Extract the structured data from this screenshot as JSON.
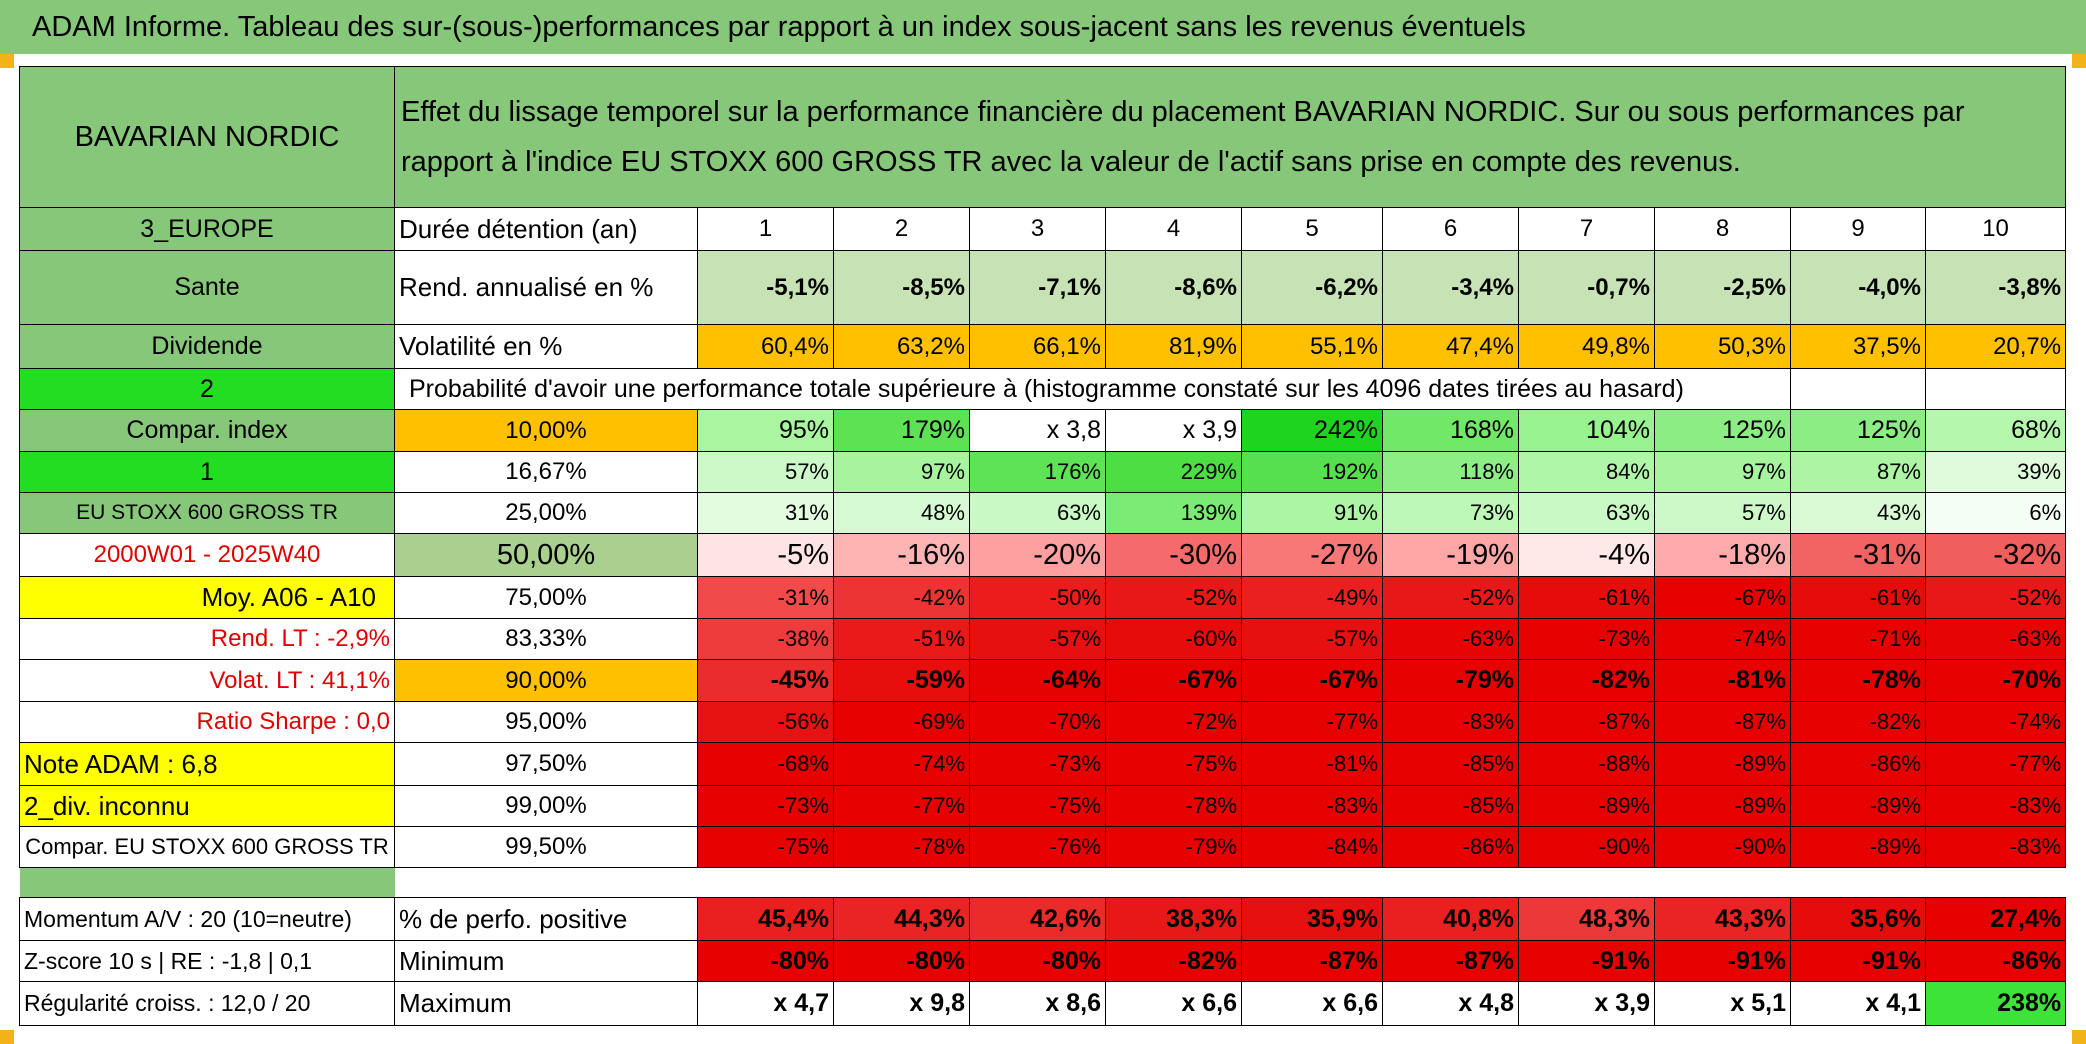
{
  "banner": "ADAM Informe. Tableau des sur-(sous-)performances par rapport à un index sous-jacent sans les revenus éventuels",
  "header": {
    "asset": "BAVARIAN NORDIC",
    "description_line1": "Effet du lissage temporel sur la performance financière du placement BAVARIAN NORDIC. Sur ou sous performances par",
    "description_line2": "rapport à l'indice EU STOXX 600 GROSS TR avec la valeur de l'actif sans prise en compte des revenus."
  },
  "duration": {
    "left": "3_EUROPE",
    "label": "Durée détention (an)",
    "years": [
      "1",
      "2",
      "3",
      "4",
      "5",
      "6",
      "7",
      "8",
      "9",
      "10"
    ]
  },
  "rend": {
    "left": "Sante",
    "label": "Rend. annualisé en %",
    "values": [
      "-5,1%",
      "-8,5%",
      "-7,1%",
      "-8,6%",
      "-6,2%",
      "-3,4%",
      "-0,7%",
      "-2,5%",
      "-4,0%",
      "-3,8%"
    ]
  },
  "vol": {
    "left": "Dividende",
    "label": "Volatilité en %",
    "values": [
      "60,4%",
      "63,2%",
      "66,1%",
      "81,9%",
      "55,1%",
      "47,4%",
      "49,8%",
      "50,3%",
      "37,5%",
      "20,7%"
    ],
    "colors": [
      "#ffc000",
      "#ffc000",
      "#ffc000",
      "#ffc000",
      "#ffc000",
      "#ffc000",
      "#ffc000",
      "#ffc000",
      "#ffc000",
      "#ffc000"
    ]
  },
  "prob": {
    "left": "2",
    "title": "Probabilité d'avoir une performance totale supérieure à (histogramme constaté sur les 4096 dates tirées au hasard)"
  },
  "quantiles": [
    {
      "left": "Compar. index",
      "pct": "10,00%",
      "values": [
        "95%",
        "179%",
        "x 3,8",
        "x 3,9",
        "242%",
        "168%",
        "104%",
        "125%",
        "125%",
        "68%"
      ],
      "colors": [
        "#a9f5a0",
        "#5de254",
        "#ffffff",
        "#ffffff",
        "#1ed41e",
        "#71e868",
        "#98f290",
        "#8ced84",
        "#8ced84",
        "#b6f7ae"
      ]
    },
    {
      "left": "1",
      "pct": "16,67%",
      "values": [
        "57%",
        "97%",
        "176%",
        "229%",
        "192%",
        "118%",
        "84%",
        "97%",
        "87%",
        "39%"
      ],
      "colors": [
        "#cdf9c8",
        "#a6f59e",
        "#5fe356",
        "#4cde43",
        "#56e04d",
        "#8eee86",
        "#b0f6a8",
        "#a6f59e",
        "#adf5a5",
        "#e0fbdc"
      ]
    },
    {
      "left": "EU STOXX 600 GROSS TR",
      "pct": "25,00%",
      "values": [
        "31%",
        "48%",
        "63%",
        "139%",
        "91%",
        "73%",
        "63%",
        "57%",
        "43%",
        "6%"
      ],
      "colors": [
        "#e3fce0",
        "#d6fad2",
        "#c9f9c4",
        "#7beb73",
        "#acf5a4",
        "#bef8b7",
        "#c9f9c4",
        "#cdf9c8",
        "#d9fad5",
        "#f5fef4"
      ]
    },
    {
      "left": "2000W01 - 2025W40",
      "pct": "50,00%",
      "values": [
        "-5%",
        "-16%",
        "-20%",
        "-30%",
        "-27%",
        "-19%",
        "-4%",
        "-18%",
        "-31%",
        "-32%"
      ],
      "colors": [
        "#ffe4e4",
        "#ffb4b4",
        "#ffa0a0",
        "#f56a6a",
        "#f87878",
        "#ffa6a6",
        "#ffe8e8",
        "#ffaaaa",
        "#f26464",
        "#f05e5e"
      ]
    },
    {
      "left": "Moy. A06 - A10",
      "pct": "75,00%",
      "values": [
        "-31%",
        "-42%",
        "-50%",
        "-52%",
        "-49%",
        "-52%",
        "-61%",
        "-67%",
        "-61%",
        "-52%"
      ],
      "colors": [
        "#f04a4a",
        "#ec3434",
        "#ea1c1c",
        "#e91818",
        "#ea2020",
        "#e91818",
        "#e60c0c",
        "#e60000",
        "#e60c0c",
        "#e91818"
      ]
    },
    {
      "left": "Rend. LT :    -2,9%",
      "pct": "83,33%",
      "values": [
        "-38%",
        "-51%",
        "-57%",
        "-60%",
        "-57%",
        "-63%",
        "-73%",
        "-74%",
        "-71%",
        "-63%"
      ],
      "colors": [
        "#ee3c3c",
        "#e91a1a",
        "#e71010",
        "#e60c0c",
        "#e71010",
        "#e60404",
        "#e60000",
        "#e60000",
        "#e60000",
        "#e60404"
      ]
    },
    {
      "left": "Volat. LT :   41,1%",
      "pct": "90,00%",
      "values": [
        "-45%",
        "-59%",
        "-64%",
        "-67%",
        "-67%",
        "-79%",
        "-82%",
        "-81%",
        "-78%",
        "-70%"
      ],
      "colors": [
        "#eb2c2c",
        "#e70e0e",
        "#e60202",
        "#e60000",
        "#e60000",
        "#e60000",
        "#e60000",
        "#e60000",
        "#e60000",
        "#e60000"
      ]
    },
    {
      "left": "Ratio Sharpe :    0,0",
      "pct": "95,00%",
      "values": [
        "-56%",
        "-69%",
        "-70%",
        "-72%",
        "-77%",
        "-83%",
        "-87%",
        "-87%",
        "-82%",
        "-74%"
      ],
      "colors": [
        "#e71212",
        "#e60000",
        "#e60000",
        "#e60000",
        "#e60000",
        "#e60000",
        "#e60000",
        "#e60000",
        "#e60000",
        "#e60000"
      ]
    },
    {
      "left": "Note ADAM : 6,8",
      "pct": "97,50%",
      "values": [
        "-68%",
        "-74%",
        "-73%",
        "-75%",
        "-81%",
        "-85%",
        "-88%",
        "-89%",
        "-86%",
        "-77%"
      ],
      "colors": [
        "#e60000",
        "#e60000",
        "#e60000",
        "#e60000",
        "#e60000",
        "#e60000",
        "#e60000",
        "#e60000",
        "#e60000",
        "#e60000"
      ]
    },
    {
      "left": "2_div. inconnu",
      "pct": "99,00%",
      "values": [
        "-73%",
        "-77%",
        "-75%",
        "-78%",
        "-83%",
        "-85%",
        "-89%",
        "-89%",
        "-89%",
        "-83%"
      ],
      "colors": [
        "#e60000",
        "#e60000",
        "#e60000",
        "#e60000",
        "#e60000",
        "#e60000",
        "#e60000",
        "#e60000",
        "#e60000",
        "#e60000"
      ]
    },
    {
      "left": "Compar. EU STOXX 600 GROSS TR",
      "pct": "99,50%",
      "values": [
        "-75%",
        "-78%",
        "-76%",
        "-79%",
        "-84%",
        "-86%",
        "-90%",
        "-90%",
        "-89%",
        "-83%"
      ],
      "colors": [
        "#e60000",
        "#e60000",
        "#e60000",
        "#e60000",
        "#e60000",
        "#e60000",
        "#e60000",
        "#e60000",
        "#e60000",
        "#e60000"
      ]
    }
  ],
  "bottom": [
    {
      "left": "Momentum A/V : 20 (10=neutre)",
      "label": "% de perfo. positive",
      "values": [
        "45,4%",
        "44,3%",
        "42,6%",
        "38,3%",
        "35,9%",
        "40,8%",
        "48,3%",
        "43,3%",
        "35,6%",
        "27,4%"
      ],
      "colors": [
        "#ea2020",
        "#ea2424",
        "#eb2a2a",
        "#e91818",
        "#e71010",
        "#ea2020",
        "#ec3838",
        "#ea2424",
        "#e60c0c",
        "#e60000"
      ]
    },
    {
      "left": "Z-score 10 s | RE : -1,8 | 0,1",
      "label": "Minimum",
      "values": [
        "-80%",
        "-80%",
        "-80%",
        "-82%",
        "-87%",
        "-87%",
        "-91%",
        "-91%",
        "-91%",
        "-86%"
      ],
      "colors": [
        "#e60000",
        "#e60000",
        "#e60000",
        "#e60000",
        "#e60000",
        "#e60000",
        "#e60000",
        "#e60000",
        "#e60000",
        "#e60000"
      ]
    },
    {
      "left": "Régularité croiss. : 12,0 / 20",
      "label": "Maximum",
      "values": [
        "x 4,7",
        "x 9,8",
        "x 8,6",
        "x 6,6",
        "x 6,6",
        "x 4,8",
        "x 3,9",
        "x 5,1",
        "x 4,1",
        "238%"
      ],
      "colors": [
        "#ffffff",
        "#ffffff",
        "#ffffff",
        "#ffffff",
        "#ffffff",
        "#ffffff",
        "#ffffff",
        "#ffffff",
        "#ffffff",
        "#3ee33a"
      ]
    }
  ]
}
